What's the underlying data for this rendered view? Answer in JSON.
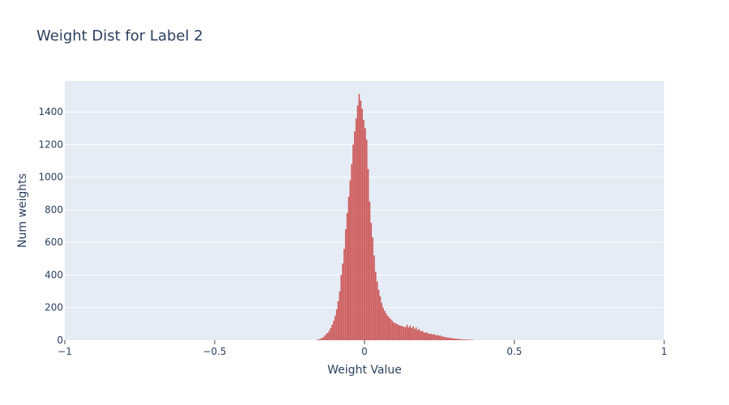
{
  "chart_data": {
    "type": "bar",
    "title": "Weight Dist for Label 2",
    "xlabel": "Weight Value",
    "ylabel": "Num weights",
    "xlim": [
      -1,
      1
    ],
    "ylim": [
      0,
      1590
    ],
    "x_ticks": [
      -1,
      -0.5,
      0,
      0.5,
      1
    ],
    "x_tick_labels": [
      "−1",
      "−0.5",
      "0",
      "0.5",
      "1"
    ],
    "y_ticks": [
      0,
      200,
      400,
      600,
      800,
      1000,
      1200,
      1400
    ],
    "y_tick_labels": [
      "0",
      "200",
      "400",
      "600",
      "800",
      "1000",
      "1200",
      "1400"
    ],
    "grid": true,
    "legend": "none",
    "colors": {
      "bar": "#cd5c5c",
      "plot_bg": "#e5ecf6",
      "grid": "#ffffff",
      "text": "#2a3f5f"
    },
    "bin_width": 0.005,
    "bins": [
      [
        -0.16,
        3
      ],
      [
        -0.155,
        5
      ],
      [
        -0.15,
        8
      ],
      [
        -0.145,
        12
      ],
      [
        -0.14,
        18
      ],
      [
        -0.135,
        28
      ],
      [
        -0.13,
        38
      ],
      [
        -0.125,
        45
      ],
      [
        -0.12,
        58
      ],
      [
        -0.115,
        75
      ],
      [
        -0.11,
        95
      ],
      [
        -0.105,
        120
      ],
      [
        -0.1,
        150
      ],
      [
        -0.095,
        190
      ],
      [
        -0.09,
        240
      ],
      [
        -0.085,
        300
      ],
      [
        -0.08,
        400
      ],
      [
        -0.075,
        470
      ],
      [
        -0.07,
        560
      ],
      [
        -0.065,
        680
      ],
      [
        -0.06,
        780
      ],
      [
        -0.055,
        880
      ],
      [
        -0.05,
        980
      ],
      [
        -0.045,
        1080
      ],
      [
        -0.04,
        1200
      ],
      [
        -0.035,
        1280
      ],
      [
        -0.03,
        1360
      ],
      [
        -0.025,
        1440
      ],
      [
        -0.02,
        1510
      ],
      [
        -0.015,
        1470
      ],
      [
        -0.01,
        1420
      ],
      [
        -0.005,
        1350
      ],
      [
        0,
        1300
      ],
      [
        0.005,
        1230
      ],
      [
        0.01,
        1050
      ],
      [
        0.015,
        850
      ],
      [
        0.02,
        720
      ],
      [
        0.025,
        630
      ],
      [
        0.03,
        520
      ],
      [
        0.035,
        420
      ],
      [
        0.04,
        360
      ],
      [
        0.045,
        310
      ],
      [
        0.05,
        270
      ],
      [
        0.055,
        230
      ],
      [
        0.06,
        200
      ],
      [
        0.065,
        180
      ],
      [
        0.07,
        165
      ],
      [
        0.075,
        150
      ],
      [
        0.08,
        140
      ],
      [
        0.085,
        130
      ],
      [
        0.09,
        120
      ],
      [
        0.095,
        110
      ],
      [
        0.1,
        105
      ],
      [
        0.105,
        100
      ],
      [
        0.11,
        95
      ],
      [
        0.115,
        90
      ],
      [
        0.12,
        88
      ],
      [
        0.125,
        85
      ],
      [
        0.13,
        82
      ],
      [
        0.135,
        80
      ],
      [
        0.14,
        95
      ],
      [
        0.145,
        78
      ],
      [
        0.15,
        90
      ],
      [
        0.155,
        75
      ],
      [
        0.16,
        85
      ],
      [
        0.165,
        70
      ],
      [
        0.17,
        78
      ],
      [
        0.175,
        62
      ],
      [
        0.18,
        68
      ],
      [
        0.185,
        55
      ],
      [
        0.19,
        58
      ],
      [
        0.195,
        50
      ],
      [
        0.2,
        45
      ],
      [
        0.205,
        48
      ],
      [
        0.21,
        42
      ],
      [
        0.215,
        38
      ],
      [
        0.22,
        40
      ],
      [
        0.225,
        35
      ],
      [
        0.23,
        38
      ],
      [
        0.235,
        30
      ],
      [
        0.24,
        32
      ],
      [
        0.245,
        28
      ],
      [
        0.25,
        30
      ],
      [
        0.255,
        24
      ],
      [
        0.26,
        22
      ],
      [
        0.265,
        20
      ],
      [
        0.27,
        18
      ],
      [
        0.275,
        16
      ],
      [
        0.28,
        15
      ],
      [
        0.285,
        14
      ],
      [
        0.29,
        12
      ],
      [
        0.295,
        11
      ],
      [
        0.3,
        10
      ],
      [
        0.305,
        9
      ],
      [
        0.31,
        8
      ],
      [
        0.315,
        7
      ],
      [
        0.32,
        6
      ],
      [
        0.325,
        5
      ],
      [
        0.33,
        5
      ],
      [
        0.335,
        4
      ],
      [
        0.34,
        4
      ],
      [
        0.345,
        3
      ],
      [
        0.35,
        3
      ],
      [
        0.355,
        2
      ],
      [
        0.36,
        2
      ]
    ]
  }
}
